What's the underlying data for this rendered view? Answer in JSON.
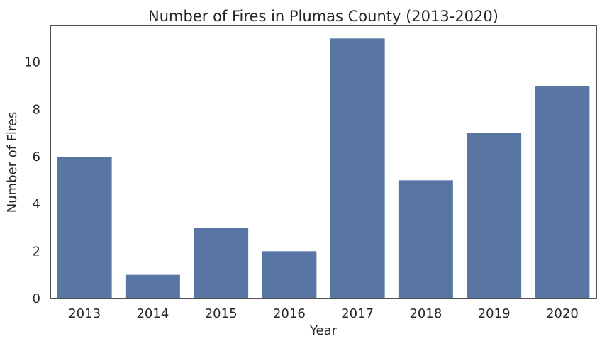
{
  "chart_data": {
    "type": "bar",
    "title": "Number of Fires in Plumas County (2013-2020)",
    "xlabel": "Year",
    "ylabel": "Number of Fires",
    "categories": [
      "2013",
      "2014",
      "2015",
      "2016",
      "2017",
      "2018",
      "2019",
      "2020"
    ],
    "values": [
      6,
      1,
      3,
      2,
      11,
      5,
      7,
      9
    ],
    "ylim": [
      0,
      11.55
    ],
    "yticks": [
      0,
      2,
      4,
      6,
      8,
      10
    ],
    "grid": false,
    "bar_color": "#5975a4"
  }
}
